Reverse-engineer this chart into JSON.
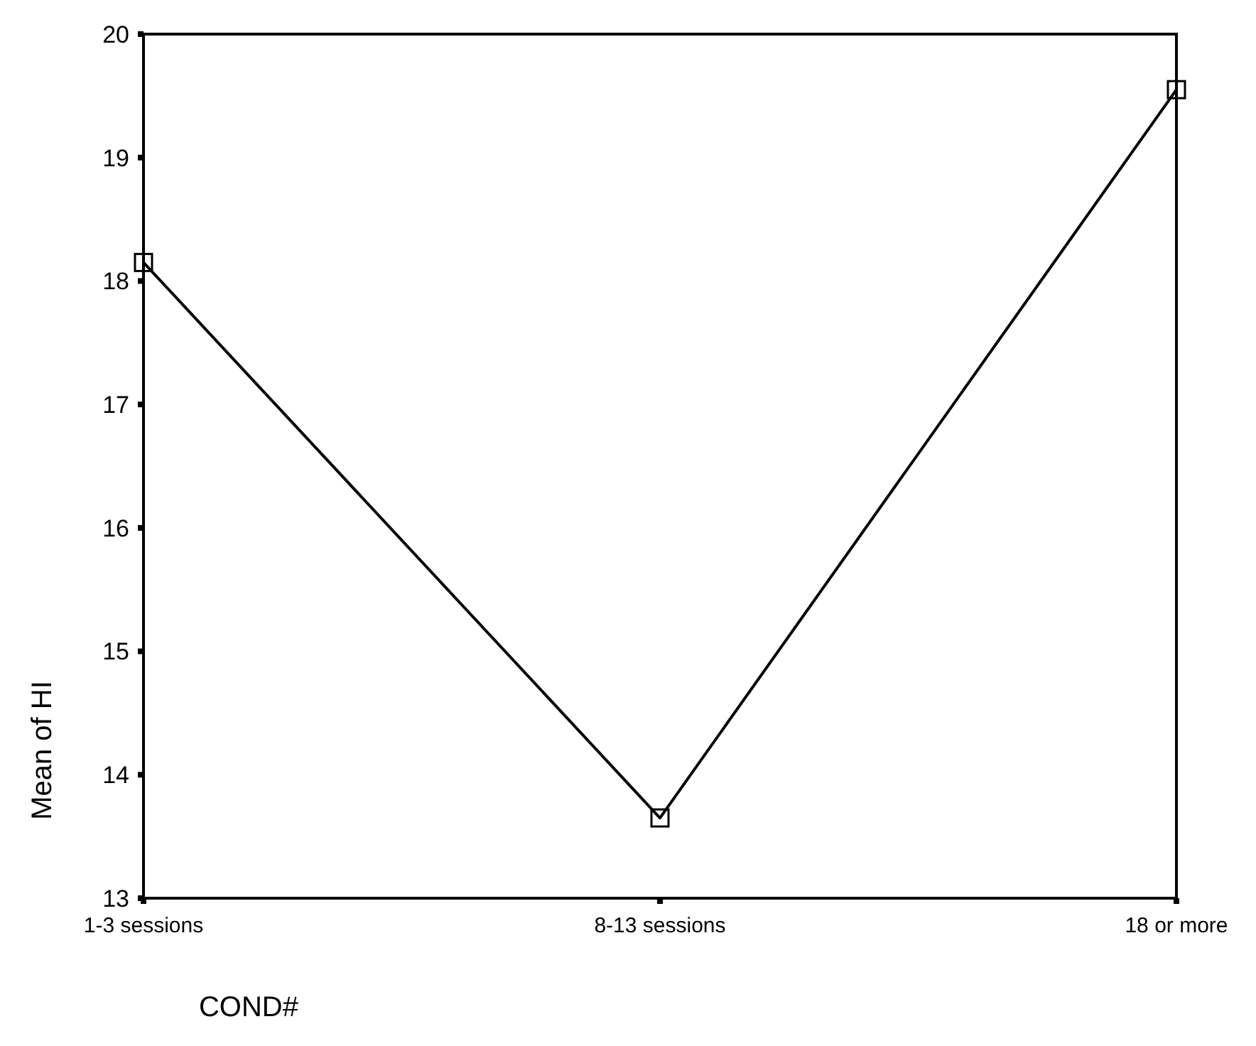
{
  "chart_data": {
    "type": "line",
    "xlabel": "COND#",
    "ylabel": "Mean of HI",
    "categories": [
      "1-3 sessions",
      "8-13 sessions",
      "18 or more"
    ],
    "series": [
      {
        "color": "#000000",
        "values": [
          18.15,
          13.65,
          19.55
        ]
      }
    ],
    "ylim": [
      13,
      20
    ],
    "yticks": [
      13,
      14,
      15,
      16,
      17,
      18,
      19,
      20
    ],
    "marker": "square",
    "grid": false
  }
}
